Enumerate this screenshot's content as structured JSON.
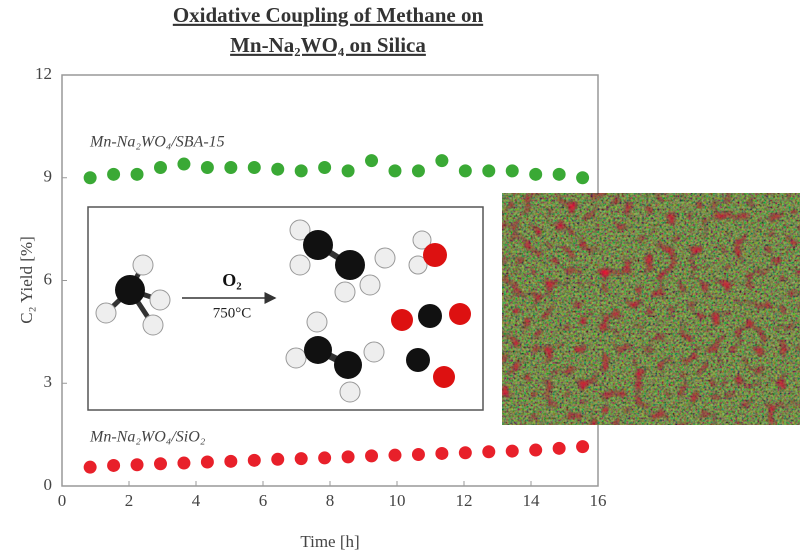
{
  "chart_data": {
    "type": "scatter",
    "title": [
      "Oxidative Coupling of Methane on",
      "Mn-Na₂WO₄ on Silica"
    ],
    "xlabel": "Time [h]",
    "ylabel": "C₂ Yield [%]",
    "x": [
      0.84,
      1.54,
      2.24,
      2.94,
      3.64,
      4.34,
      5.04,
      5.74,
      6.44,
      7.14,
      7.84,
      8.54,
      9.24,
      9.94,
      10.64,
      11.34,
      12.04,
      12.74,
      13.44,
      14.14,
      14.84,
      15.54
    ],
    "series": [
      {
        "name": "Mn-Na₂WO₄/SBA-15",
        "color": "#3aa935",
        "values": [
          9.0,
          9.1,
          9.1,
          9.3,
          9.4,
          9.3,
          9.3,
          9.3,
          9.25,
          9.2,
          9.3,
          9.2,
          9.5,
          9.2,
          9.2,
          9.5,
          9.2,
          9.2,
          9.2,
          9.1,
          9.1,
          9.0
        ]
      },
      {
        "name": "Mn-Na₂WO₄/SiO₂",
        "color": "#e8202a",
        "values": [
          0.55,
          0.6,
          0.62,
          0.65,
          0.67,
          0.7,
          0.72,
          0.75,
          0.78,
          0.8,
          0.82,
          0.85,
          0.88,
          0.9,
          0.92,
          0.95,
          0.97,
          1.0,
          1.02,
          1.05,
          1.1,
          1.15
        ]
      }
    ],
    "xlim": [
      0,
      16
    ],
    "xticks": [
      0,
      2,
      4,
      6,
      8,
      10,
      12,
      14,
      16
    ],
    "ylim": [
      0,
      12
    ],
    "yticks": [
      0,
      3,
      6,
      9,
      12
    ],
    "inset": {
      "reagent": "O₂",
      "temperature": "750°C"
    }
  }
}
